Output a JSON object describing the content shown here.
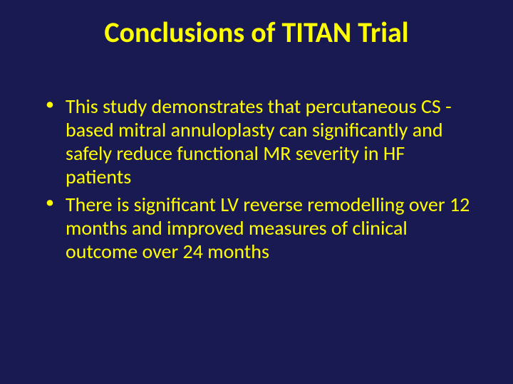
{
  "slide": {
    "background_color": "#1a1a52",
    "text_color": "#ffff00",
    "title": "Conclusions of TITAN Trial",
    "title_fontsize": 40,
    "title_fontweight": 700,
    "body_fontsize": 28,
    "bullets": [
      "This study demonstrates that percutaneous CS -based mitral annuloplasty can significantly and safely reduce functional MR severity in HF patients",
      "There is significant LV reverse remodelling over 12 months and improved measures of clinical outcome over 24 months"
    ]
  }
}
